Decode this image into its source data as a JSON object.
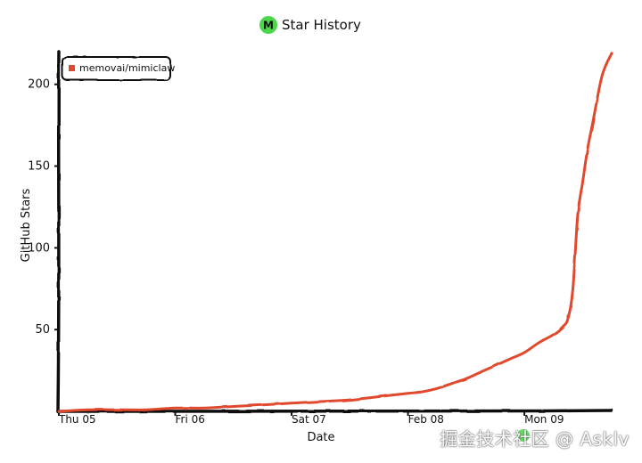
{
  "header": {
    "title": "Star History",
    "logo_letter": "M"
  },
  "chart_data": {
    "type": "line",
    "title": "Star History",
    "xlabel": "Date",
    "ylabel": "GitHub Stars",
    "x_tick_labels": [
      "Thu 05",
      "Fri 06",
      "Sat 07",
      "Feb 08",
      "Mon 09"
    ],
    "y_ticks": [
      50,
      100,
      150,
      200
    ],
    "ylim": [
      0,
      220
    ],
    "xlim": [
      "2026-02-05 00:00",
      "2026-02-09 18:00"
    ],
    "grid": false,
    "legend_position": "top-left",
    "series": [
      {
        "name": "memovai/mimiclaw",
        "color": "#e0492f",
        "x": [
          "2026-02-05 00:00",
          "2026-02-05 06:00",
          "2026-02-05 12:00",
          "2026-02-05 18:00",
          "2026-02-06 00:00",
          "2026-02-06 06:00",
          "2026-02-06 12:00",
          "2026-02-06 18:00",
          "2026-02-07 00:00",
          "2026-02-07 06:00",
          "2026-02-07 12:00",
          "2026-02-07 18:00",
          "2026-02-08 00:00",
          "2026-02-08 03:00",
          "2026-02-08 06:00",
          "2026-02-08 09:00",
          "2026-02-08 12:00",
          "2026-02-08 15:00",
          "2026-02-08 18:00",
          "2026-02-08 21:00",
          "2026-02-09 00:00",
          "2026-02-09 03:00",
          "2026-02-09 06:00",
          "2026-02-09 08:00",
          "2026-02-09 09:00",
          "2026-02-09 10:00",
          "2026-02-09 11:00",
          "2026-02-09 12:00",
          "2026-02-09 13:00",
          "2026-02-09 14:00",
          "2026-02-09 16:00",
          "2026-02-09 18:00"
        ],
        "y": [
          0,
          1,
          1,
          1,
          2,
          2,
          3,
          4,
          5,
          6,
          7,
          9,
          11,
          12,
          14,
          17,
          20,
          24,
          28,
          32,
          36,
          42,
          47,
          52,
          57,
          75,
          120,
          140,
          160,
          175,
          205,
          219
        ]
      }
    ]
  },
  "watermark": "掘金技术社区 @ Asklv"
}
